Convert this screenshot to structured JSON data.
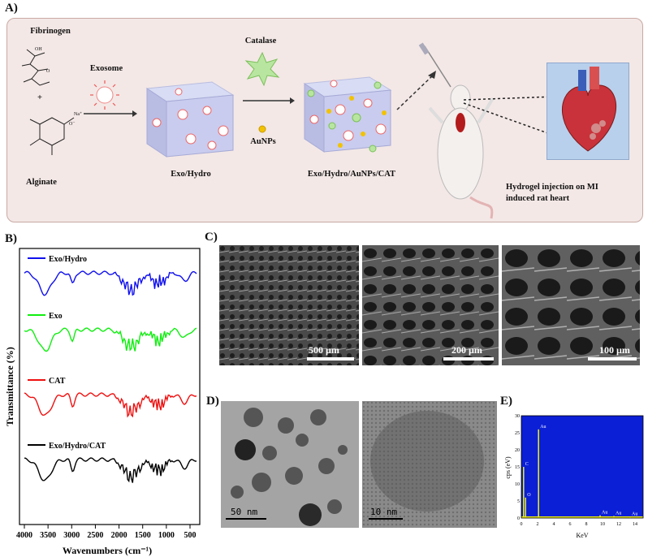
{
  "panel_labels": {
    "a": "A)",
    "b": "B)",
    "c": "C)",
    "d": "D)",
    "e": "E)"
  },
  "schematic": {
    "fibrinogen": "Fibrinogen",
    "alginate": "Alginate",
    "plus": "+",
    "exosome": "Exosome",
    "exo_hydro": "Exo/Hydro",
    "catalase": "Catalase",
    "aunps": "AuNPs",
    "exo_hydro_aunps_cat": "Exo/Hydro/AuNPs/CAT",
    "injection_line1": "Hydrogel injection on MI",
    "injection_line2": "induced rat heart",
    "na_label": "Na⁺",
    "o_minus": "O⁻",
    "oh": "OH",
    "o": "O"
  },
  "ftir": {
    "ylabel": "Transmittance (%)",
    "xlabel": "Wavenumbers (cm⁻¹)",
    "xticks": [
      "4000",
      "3500",
      "3000",
      "2500",
      "2000",
      "1500",
      "1000",
      "500"
    ],
    "series": [
      {
        "name": "Exo/Hydro",
        "color": "#1010ee"
      },
      {
        "name": "Exo",
        "color": "#10ee10"
      },
      {
        "name": "CAT",
        "color": "#ee1010"
      },
      {
        "name": "Exo/Hydro/CAT",
        "color": "#000000"
      }
    ]
  },
  "sem": {
    "scales": [
      "500 µm",
      "200 µm",
      "100 µm"
    ]
  },
  "tem": {
    "scales": [
      "50 nm",
      "10 nm"
    ]
  },
  "chart_data": {
    "type": "bar",
    "xlabel": "KeV",
    "ylabel": "cps (eV)",
    "xlim": [
      0,
      15
    ],
    "ylim": [
      0,
      30
    ],
    "xticks": [
      "0",
      "2",
      "4",
      "6",
      "8",
      "10",
      "12",
      "14"
    ],
    "yticks": [
      "0",
      "5",
      "10",
      "15",
      "20",
      "25",
      "30"
    ],
    "peaks": [
      {
        "label": "C",
        "x": 0.28,
        "y": 15
      },
      {
        "label": "O",
        "x": 0.52,
        "y": 6
      },
      {
        "label": "Au",
        "x": 2.12,
        "y": 26
      },
      {
        "label": "Au",
        "x": 9.7,
        "y": 0.8
      },
      {
        "label": "Au",
        "x": 11.4,
        "y": 0.6
      },
      {
        "label": "Au",
        "x": 13.4,
        "y": 0.4
      }
    ],
    "colors": {
      "background": "#0b1fd6",
      "signal": "#f2f20a"
    }
  }
}
